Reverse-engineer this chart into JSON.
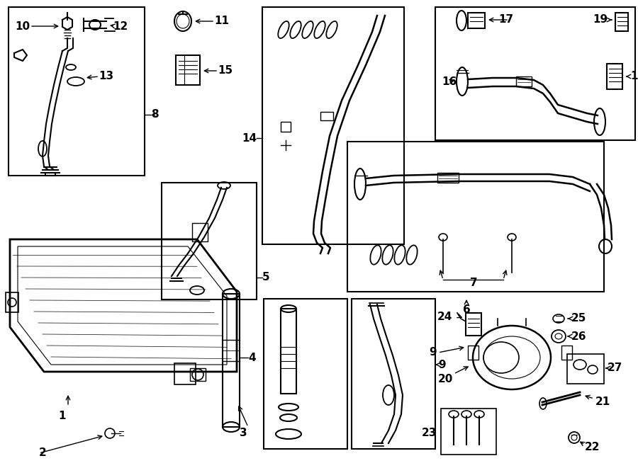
{
  "bg": "#ffffff",
  "lc": "#000000",
  "fw": 9.0,
  "fh": 6.61,
  "dpi": 100
}
